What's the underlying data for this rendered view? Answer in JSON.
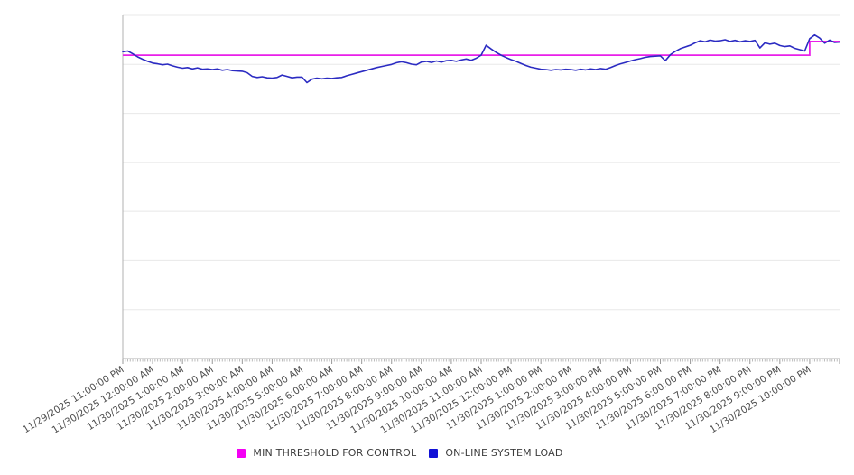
{
  "chart_data": {
    "type": "line",
    "title": "",
    "xlabel": "",
    "ylabel": "",
    "y_axis_unlabeled": true,
    "ylim": [
      0,
      100
    ],
    "gridline_divisions": 7,
    "grid": "horizontal",
    "legend_position": "bottom-center",
    "points_per_hour": 6,
    "x_minor_tick_minutes": 5,
    "x_tick_labels": [
      "11/29/2025 11:00:00 PM",
      "11/30/2025 12:00:00 AM",
      "11/30/2025 1:00:00 AM",
      "11/30/2025 2:00:00 AM",
      "11/30/2025 3:00:00 AM",
      "11/30/2025 4:00:00 AM",
      "11/30/2025 5:00:00 AM",
      "11/30/2025 6:00:00 AM",
      "11/30/2025 7:00:00 AM",
      "11/30/2025 8:00:00 AM",
      "11/30/2025 9:00:00 AM",
      "11/30/2025 10:00:00 AM",
      "11/30/2025 11:00:00 AM",
      "11/30/2025 12:00:00 PM",
      "11/30/2025 1:00:00 PM",
      "11/30/2025 2:00:00 PM",
      "11/30/2025 3:00:00 PM",
      "11/30/2025 4:00:00 PM",
      "11/30/2025 5:00:00 PM",
      "11/30/2025 6:00:00 PM",
      "11/30/2025 7:00:00 PM",
      "11/30/2025 8:00:00 PM",
      "11/30/2025 9:00:00 PM",
      "11/30/2025 10:00:00 PM"
    ],
    "series": [
      {
        "name": "MIN THRESHOLD FOR CONTROL",
        "type": "step-line",
        "color": "#e91fe9",
        "segments": [
          {
            "from_index": 0,
            "to_index": 138,
            "value": 88.4
          },
          {
            "from_index": 138,
            "to_index": 144,
            "value": 92.4
          }
        ]
      },
      {
        "name": "ON-LINE SYSTEM LOAD",
        "type": "line",
        "color": "#2b2bc2",
        "values": [
          89.4,
          89.6,
          88.8,
          87.9,
          87.2,
          86.6,
          86.1,
          85.9,
          85.6,
          85.8,
          85.3,
          84.9,
          84.6,
          84.8,
          84.4,
          84.7,
          84.3,
          84.4,
          84.2,
          84.4,
          84.0,
          84.2,
          83.9,
          83.8,
          83.7,
          83.3,
          82.2,
          81.9,
          82.1,
          81.8,
          81.7,
          81.9,
          82.6,
          82.2,
          81.8,
          82.0,
          82.0,
          80.4,
          81.4,
          81.7,
          81.5,
          81.7,
          81.6,
          81.8,
          81.9,
          82.4,
          82.8,
          83.2,
          83.6,
          84.0,
          84.4,
          84.8,
          85.1,
          85.4,
          85.7,
          86.2,
          86.5,
          86.2,
          85.8,
          85.6,
          86.4,
          86.6,
          86.3,
          86.7,
          86.4,
          86.8,
          86.9,
          86.6,
          87.0,
          87.3,
          86.9,
          87.5,
          88.4,
          91.3,
          90.2,
          89.2,
          88.4,
          87.7,
          87.1,
          86.6,
          86.0,
          85.4,
          84.9,
          84.6,
          84.3,
          84.2,
          84.0,
          84.2,
          84.1,
          84.3,
          84.2,
          84.0,
          84.3,
          84.1,
          84.4,
          84.2,
          84.5,
          84.3,
          84.8,
          85.4,
          85.9,
          86.3,
          86.7,
          87.1,
          87.4,
          87.8,
          88.0,
          88.1,
          88.2,
          86.8,
          88.5,
          89.5,
          90.3,
          90.8,
          91.3,
          92.0,
          92.6,
          92.3,
          92.8,
          92.5,
          92.6,
          92.9,
          92.4,
          92.7,
          92.3,
          92.6,
          92.4,
          92.7,
          90.5,
          92.0,
          91.6,
          91.9,
          91.2,
          90.9,
          91.1,
          90.4,
          90.0,
          89.6,
          93.2,
          94.3,
          93.4,
          91.9,
          92.8,
          92.1,
          92.2
        ]
      }
    ],
    "colors": {
      "gridline": "#e8e8e8",
      "axis": "#b0b0b0",
      "minor_tick": "#bbbbbb",
      "hour_tick": "#999999",
      "tick_label": "#4d4d4d"
    }
  },
  "legend": {
    "items": [
      {
        "label": "MIN THRESHOLD FOR CONTROL",
        "color": "#f400f4"
      },
      {
        "label": "ON-LINE SYSTEM LOAD",
        "color": "#1111d6"
      }
    ]
  }
}
